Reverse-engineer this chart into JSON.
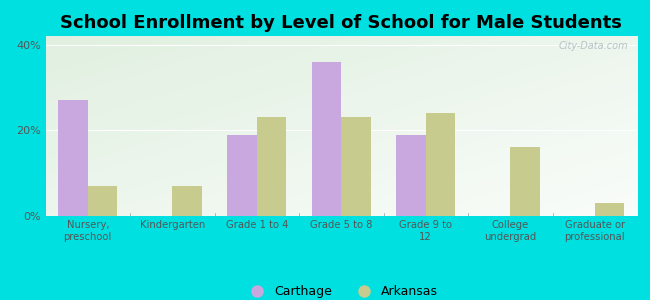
{
  "title": "School Enrollment by Level of School for Male Students",
  "categories": [
    "Nursery,\npreschool",
    "Kindergarten",
    "Grade 1 to 4",
    "Grade 5 to 8",
    "Grade 9 to\n12",
    "College\nundergrad",
    "Graduate or\nprofessional"
  ],
  "carthage": [
    27,
    0,
    19,
    36,
    19,
    0,
    0
  ],
  "arkansas": [
    7,
    7,
    23,
    23,
    24,
    16,
    3
  ],
  "carthage_color": "#c8a8df",
  "arkansas_color": "#c8cb8e",
  "background_color": "#00e0e0",
  "yticks": [
    0,
    20,
    40
  ],
  "ylim": [
    0,
    42
  ],
  "bar_width": 0.35,
  "title_fontsize": 13,
  "legend_labels": [
    "Carthage",
    "Arkansas"
  ],
  "watermark": "City-Data.com"
}
